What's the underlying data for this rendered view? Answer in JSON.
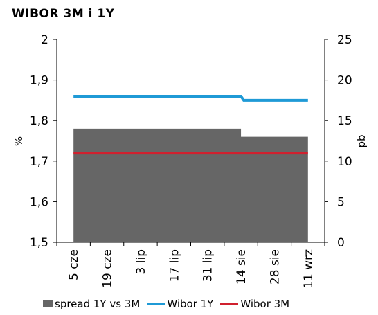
{
  "chart_data": {
    "type": "line",
    "title": "WIBOR 3M i 1Y",
    "ylabel_left": "%",
    "ylabel_right": "pb",
    "ylim_left": [
      1.5,
      2.0
    ],
    "ylim_right": [
      0,
      25
    ],
    "yticks_left": [
      "1,5",
      "1,6",
      "1,7",
      "1,8",
      "1,9",
      "2"
    ],
    "yticks_right": [
      "0",
      "5",
      "10",
      "15",
      "20",
      "25"
    ],
    "x_tick_labels": [
      "5 cze",
      "19 cze",
      "3 lip",
      "17 lip",
      "31 lip",
      "14 sie",
      "28 sie",
      "11 wrz"
    ],
    "grid": false,
    "legend_position": "bottom",
    "series": [
      {
        "name": "spread 1Y vs 3M",
        "kind": "area",
        "axis": "right",
        "color": "#666666",
        "points": [
          [
            "5 cze",
            14
          ],
          [
            "14 sie",
            14
          ],
          [
            "14 sie",
            13
          ],
          [
            "11 wrz",
            13
          ]
        ]
      },
      {
        "name": "Wibor 1Y",
        "kind": "line",
        "axis": "left",
        "color": "#1f9ad6",
        "points": [
          [
            "5 cze",
            1.86
          ],
          [
            "14 sie",
            1.86
          ],
          [
            "14 sie",
            1.85
          ],
          [
            "11 wrz",
            1.85
          ]
        ]
      },
      {
        "name": "Wibor 3M",
        "kind": "line",
        "axis": "left",
        "color": "#d0202e",
        "points": [
          [
            "5 cze",
            1.72
          ],
          [
            "11 wrz",
            1.72
          ]
        ]
      }
    ]
  }
}
